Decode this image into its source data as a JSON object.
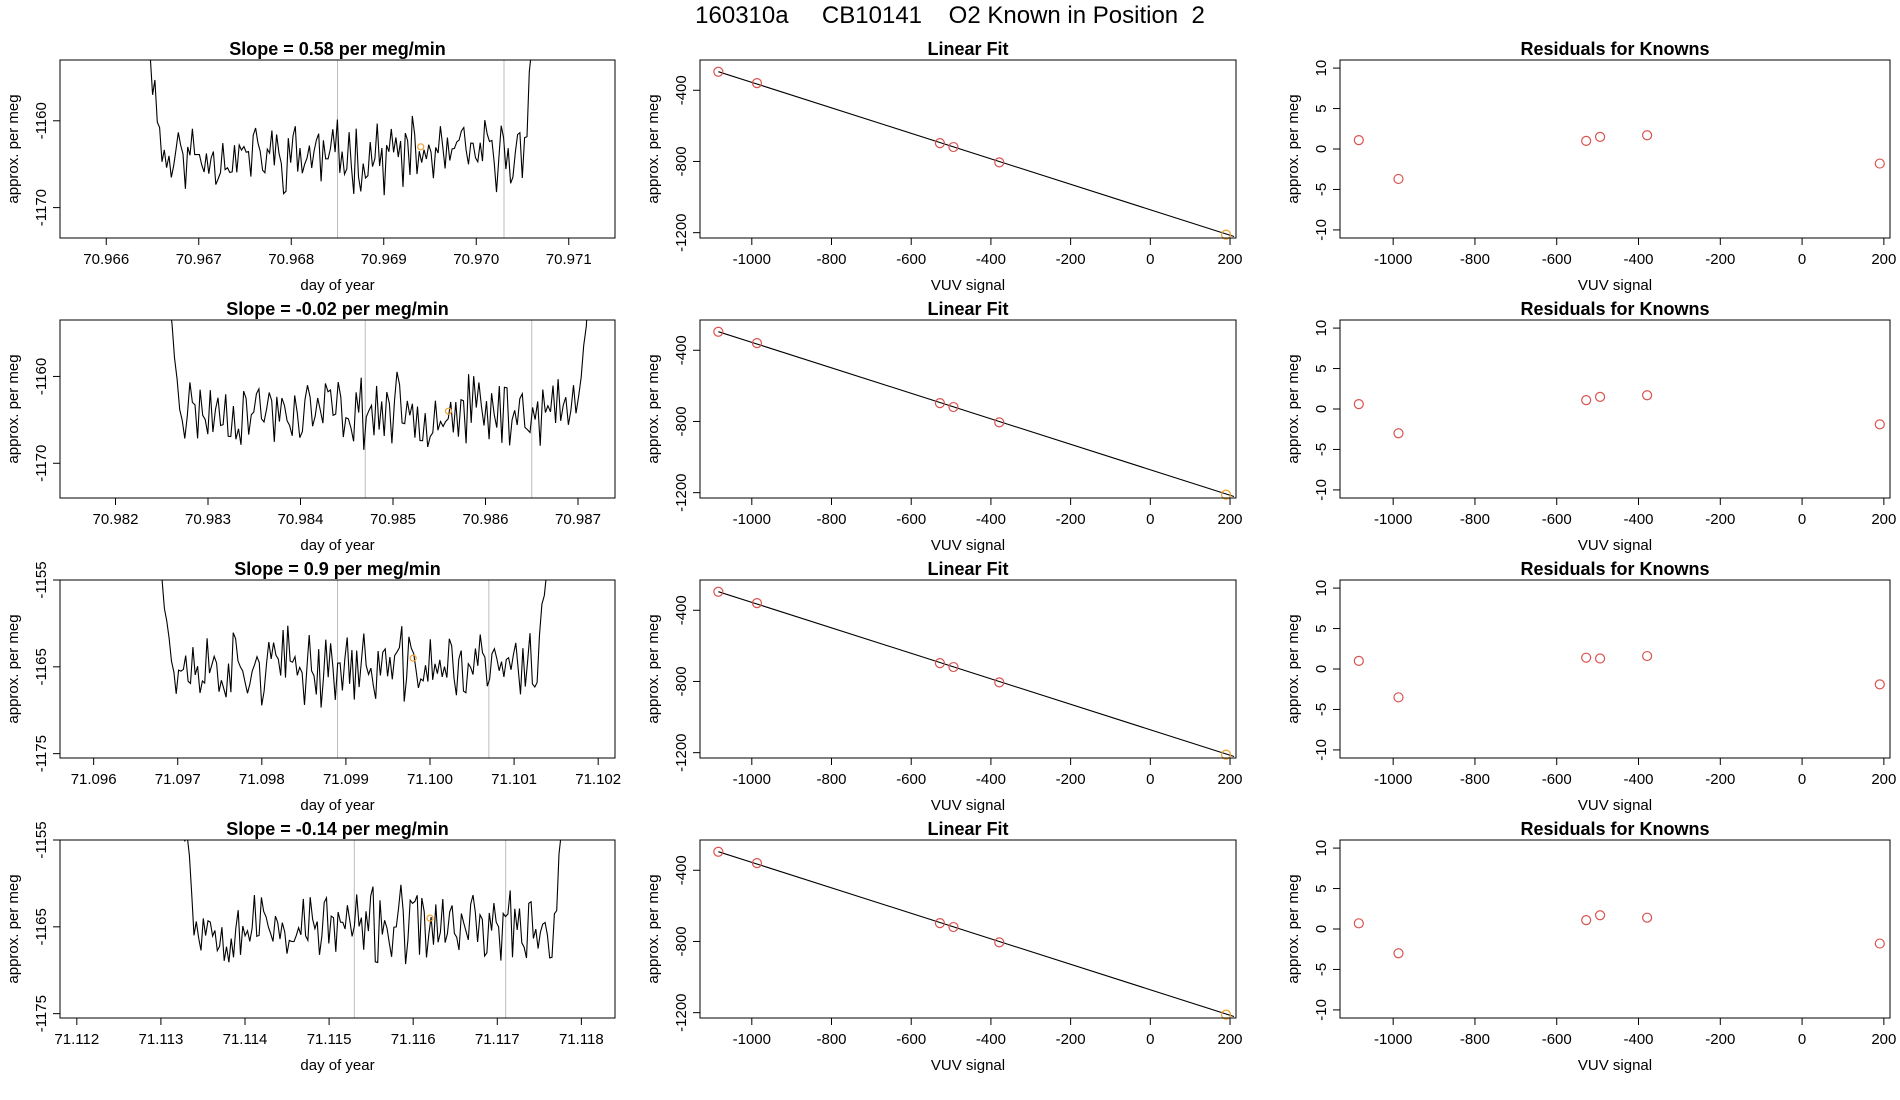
{
  "figure": {
    "title": "160310a     CB10141    O2 Known in Position  2"
  },
  "colors": {
    "line": "#000000",
    "known_point": "#d9534f",
    "highlight_point": "#f0a030",
    "guide": "#bdbdbd"
  },
  "chart_data": [
    {
      "type": "line",
      "title": "Slope =  0.58  per meg/min",
      "xlabel": "day of year",
      "ylabel": "approx. per meg",
      "xlim": [
        70.9655,
        70.9715
      ],
      "ylim": [
        -1173.5,
        -1153
      ],
      "xticks": [
        70.966,
        70.967,
        70.968,
        70.969,
        70.97,
        70.971
      ],
      "xtick_labels": [
        "70.966",
        "70.967",
        "70.968",
        "70.969",
        "70.970",
        "70.971"
      ],
      "yticks": [
        -1170,
        -1160
      ],
      "vlines": [
        70.9685,
        70.9703
      ],
      "x_start": 70.9664,
      "x_end": 70.9707,
      "seed": 11,
      "base": -1164,
      "amp": 3.0,
      "edge": 8,
      "highlight_point": {
        "x": 70.9694,
        "y": -1163
      }
    },
    {
      "type": "scatter",
      "title": "Linear Fit",
      "xlabel": "VUV signal",
      "ylabel": "approx. per meg",
      "xlim": [
        -1130,
        215
      ],
      "ylim": [
        -1230,
        -230
      ],
      "xticks": [
        -1000,
        -800,
        -600,
        -400,
        -200,
        0,
        200
      ],
      "yticks": [
        -400,
        -800,
        -1200
      ],
      "x": [
        -1084,
        -987,
        -528,
        -494,
        -379,
        190
      ],
      "y": [
        -296,
        -360,
        -697,
        -719,
        -805,
        -1211
      ],
      "point_color": [
        "known",
        "known",
        "known",
        "known",
        "known",
        "highlight"
      ],
      "fit": {
        "slope": -0.7157,
        "intercept": -1071.4,
        "x_range": [
          -1084,
          210
        ]
      }
    },
    {
      "type": "scatter",
      "title": "Residuals for Knowns",
      "xlabel": "VUV signal",
      "ylabel": "approx. per meg",
      "xlim": [
        -1130,
        215
      ],
      "ylim": [
        -11,
        11
      ],
      "xticks": [
        -1000,
        -800,
        -600,
        -400,
        -200,
        0,
        200
      ],
      "yticks": [
        10,
        5,
        0,
        -5,
        -10
      ],
      "x": [
        -1084,
        -987,
        -528,
        -494,
        -379,
        190
      ],
      "y": [
        1.1,
        -3.7,
        1.0,
        1.5,
        1.7,
        -1.8
      ]
    },
    {
      "type": "line",
      "title": "Slope =  -0.02  per meg/min",
      "xlabel": "day of year",
      "ylabel": "approx. per meg",
      "xlim": [
        70.9814,
        70.9874
      ],
      "ylim": [
        -1174,
        -1153.5
      ],
      "xticks": [
        70.982,
        70.983,
        70.984,
        70.985,
        70.986,
        70.987
      ],
      "xtick_labels": [
        "70.982",
        "70.983",
        "70.984",
        "70.985",
        "70.986",
        "70.987"
      ],
      "yticks": [
        -1170,
        -1160
      ],
      "vlines": [
        70.9847,
        70.9865
      ],
      "x_start": 70.9825,
      "x_end": 70.9872,
      "seed": 23,
      "base": -1164,
      "amp": 3.0,
      "edge": 8,
      "highlight_point": {
        "x": 70.9856,
        "y": -1164
      }
    },
    {
      "type": "scatter",
      "title": "Linear Fit",
      "xlabel": "VUV signal",
      "ylabel": "approx. per meg",
      "xlim": [
        -1130,
        215
      ],
      "ylim": [
        -1230,
        -230
      ],
      "xticks": [
        -1000,
        -800,
        -600,
        -400,
        -200,
        0,
        200
      ],
      "yticks": [
        -400,
        -800,
        -1200
      ],
      "x": [
        -1084,
        -987,
        -528,
        -494,
        -379,
        190
      ],
      "y": [
        -296,
        -360,
        -697,
        -719,
        -805,
        -1211
      ],
      "point_color": [
        "known",
        "known",
        "known",
        "known",
        "known",
        "highlight"
      ],
      "fit": {
        "slope": -0.7157,
        "intercept": -1071.4,
        "x_range": [
          -1084,
          210
        ]
      }
    },
    {
      "type": "scatter",
      "title": "Residuals for Knowns",
      "xlabel": "VUV signal",
      "ylabel": "approx. per meg",
      "xlim": [
        -1130,
        215
      ],
      "ylim": [
        -11,
        11
      ],
      "xticks": [
        -1000,
        -800,
        -600,
        -400,
        -200,
        0,
        200
      ],
      "yticks": [
        10,
        5,
        0,
        -5,
        -10
      ],
      "x": [
        -1084,
        -987,
        -528,
        -494,
        -379,
        190
      ],
      "y": [
        0.6,
        -3.0,
        1.1,
        1.5,
        1.7,
        -1.9
      ]
    },
    {
      "type": "line",
      "title": "Slope =  0.9  per meg/min",
      "xlabel": "day of year",
      "ylabel": "approx. per meg",
      "xlim": [
        71.0956,
        71.1022
      ],
      "ylim": [
        -1175.5,
        -1155
      ],
      "xticks": [
        71.096,
        71.097,
        71.098,
        71.099,
        71.1,
        71.101,
        71.102
      ],
      "xtick_labels": [
        "71.096",
        "71.097",
        "71.098",
        "71.099",
        "71.100",
        "71.101",
        "71.102"
      ],
      "yticks": [
        -1175,
        -1165,
        -1155
      ],
      "vlines": [
        71.0989,
        71.1007
      ],
      "x_start": 71.0967,
      "x_end": 71.1015,
      "seed": 37,
      "base": -1165,
      "amp": 3.2,
      "edge": 8,
      "highlight_point": {
        "x": 71.0998,
        "y": -1164
      }
    },
    {
      "type": "scatter",
      "title": "Linear Fit",
      "xlabel": "VUV signal",
      "ylabel": "approx. per meg",
      "xlim": [
        -1130,
        215
      ],
      "ylim": [
        -1230,
        -230
      ],
      "xticks": [
        -1000,
        -800,
        -600,
        -400,
        -200,
        0,
        200
      ],
      "yticks": [
        -400,
        -800,
        -1200
      ],
      "x": [
        -1084,
        -987,
        -528,
        -494,
        -379,
        190
      ],
      "y": [
        -296,
        -360,
        -697,
        -719,
        -805,
        -1211
      ],
      "point_color": [
        "known",
        "known",
        "known",
        "known",
        "known",
        "highlight"
      ],
      "fit": {
        "slope": -0.7157,
        "intercept": -1071.4,
        "x_range": [
          -1084,
          210
        ]
      }
    },
    {
      "type": "scatter",
      "title": "Residuals for Knowns",
      "xlabel": "VUV signal",
      "ylabel": "approx. per meg",
      "xlim": [
        -1130,
        215
      ],
      "ylim": [
        -11,
        11
      ],
      "xticks": [
        -1000,
        -800,
        -600,
        -400,
        -200,
        0,
        200
      ],
      "yticks": [
        10,
        5,
        0,
        -5,
        -10
      ],
      "x": [
        -1084,
        -987,
        -528,
        -494,
        -379,
        190
      ],
      "y": [
        1.0,
        -3.5,
        1.4,
        1.3,
        1.6,
        -1.9
      ]
    },
    {
      "type": "line",
      "title": "Slope =  -0.14  per meg/min",
      "xlabel": "day of year",
      "ylabel": "approx. per meg",
      "xlim": [
        71.1118,
        71.1184
      ],
      "ylim": [
        -1175.5,
        -1155
      ],
      "xticks": [
        71.112,
        71.113,
        71.114,
        71.115,
        71.116,
        71.117,
        71.118
      ],
      "xtick_labels": [
        "71.112",
        "71.113",
        "71.114",
        "71.115",
        "71.116",
        "71.117",
        "71.118"
      ],
      "yticks": [
        -1175,
        -1165,
        -1155
      ],
      "vlines": [
        71.1153,
        71.1171
      ],
      "x_start": 71.1132,
      "x_end": 71.1179,
      "seed": 53,
      "base": -1165,
      "amp": 3.2,
      "edge": 8,
      "highlight_point": {
        "x": 71.1162,
        "y": -1164
      }
    },
    {
      "type": "scatter",
      "title": "Linear Fit",
      "xlabel": "VUV signal",
      "ylabel": "approx. per meg",
      "xlim": [
        -1130,
        215
      ],
      "ylim": [
        -1230,
        -230
      ],
      "xticks": [
        -1000,
        -800,
        -600,
        -400,
        -200,
        0,
        200
      ],
      "yticks": [
        -400,
        -800,
        -1200
      ],
      "x": [
        -1084,
        -987,
        -528,
        -494,
        -379,
        190
      ],
      "y": [
        -296,
        -360,
        -697,
        -719,
        -805,
        -1211
      ],
      "point_color": [
        "known",
        "known",
        "known",
        "known",
        "known",
        "highlight"
      ],
      "fit": {
        "slope": -0.7157,
        "intercept": -1071.4,
        "x_range": [
          -1084,
          210
        ]
      }
    },
    {
      "type": "scatter",
      "title": "Residuals for Knowns",
      "xlabel": "VUV signal",
      "ylabel": "approx. per meg",
      "xlim": [
        -1130,
        215
      ],
      "ylim": [
        -11,
        11
      ],
      "xticks": [
        -1000,
        -800,
        -600,
        -400,
        -200,
        0,
        200
      ],
      "yticks": [
        10,
        5,
        0,
        -5,
        -10
      ],
      "x": [
        -1084,
        -987,
        -528,
        -494,
        -379,
        190
      ],
      "y": [
        0.7,
        -3.0,
        1.1,
        1.7,
        1.4,
        -1.8
      ]
    }
  ]
}
